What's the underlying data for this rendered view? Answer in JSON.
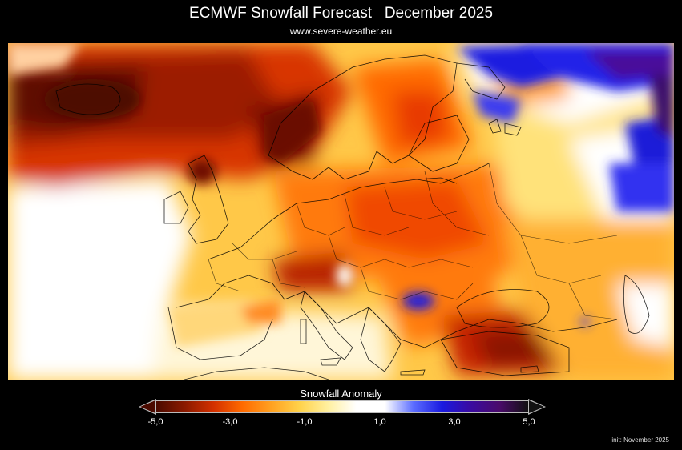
{
  "header": {
    "title": "ECMWF Snowfall Forecast   December 2025",
    "website": "www.severe-weather.eu"
  },
  "legend": {
    "title": "Snowfall Anomaly",
    "ticks": [
      "-5,0",
      "-3,0",
      "-1,0",
      "1,0",
      "3,0",
      "5,0"
    ],
    "tick_values": [
      -5,
      -3,
      -1,
      1,
      3,
      5
    ],
    "range": [
      -5,
      5
    ],
    "colors": [
      "#4a0a00",
      "#8b1a00",
      "#d33000",
      "#ff6a00",
      "#ffa020",
      "#ffd24a",
      "#fff0a0",
      "#ffffff",
      "#ffffff",
      "#5a6cff",
      "#1a1ae0",
      "#3a0aa0",
      "#4a0a6a",
      "#101010"
    ]
  },
  "footer": {
    "init": "init: November 2025"
  },
  "map": {
    "region": "Europe",
    "variable": "snowfall anomaly"
  }
}
